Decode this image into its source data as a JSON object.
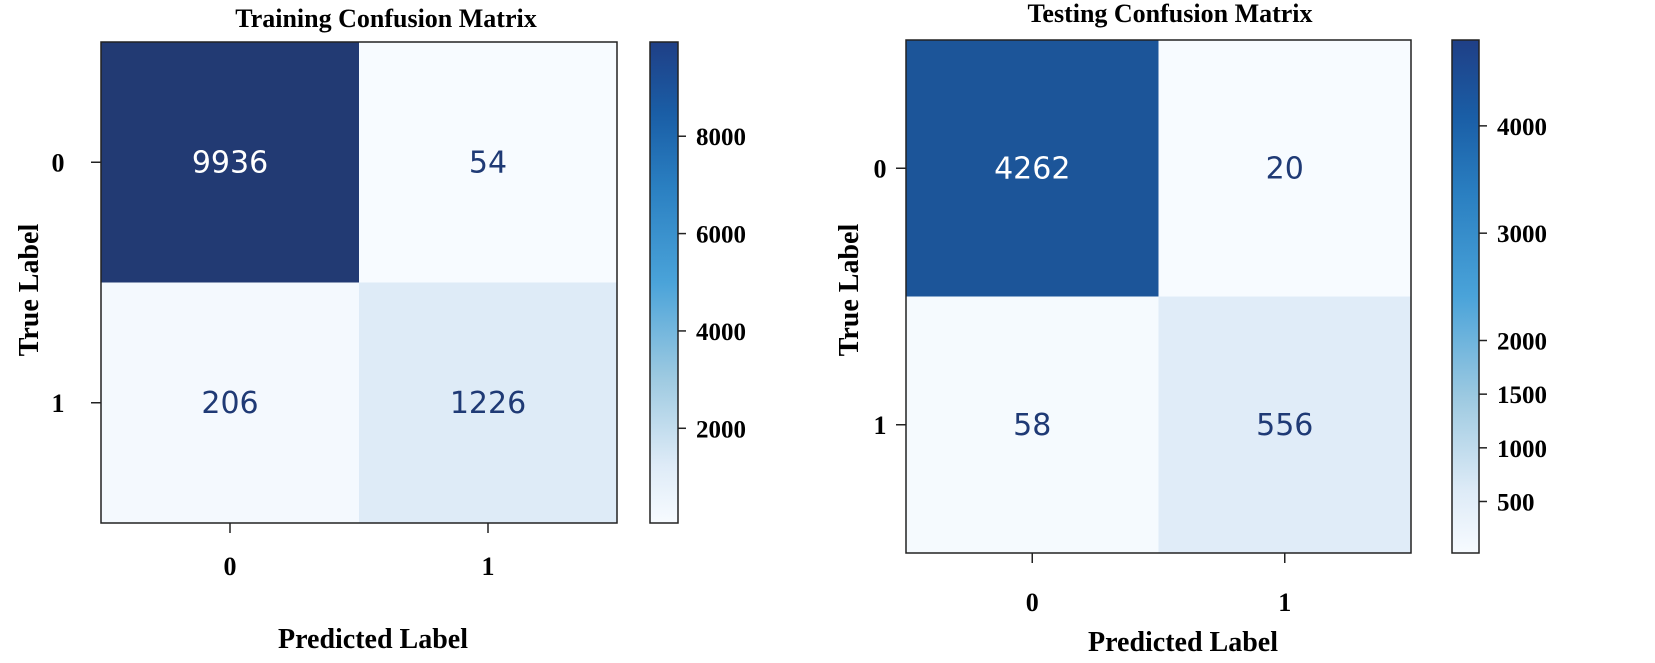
{
  "chart_data": [
    {
      "type": "heatmap",
      "title": "Training Confusion Matrix",
      "xlabel": "Predicted Label",
      "ylabel": "True Label",
      "x_categories": [
        "0",
        "1"
      ],
      "y_categories": [
        "0",
        "1"
      ],
      "values": [
        [
          9936,
          54
        ],
        [
          206,
          1226
        ]
      ],
      "colormap": "Blues",
      "colorbar": {
        "range": [
          54,
          9936
        ],
        "ticks": [
          2000,
          4000,
          6000,
          8000
        ]
      }
    },
    {
      "type": "heatmap",
      "title": "Testing Confusion Matrix",
      "xlabel": "Predicted Label",
      "ylabel": "True Label",
      "x_categories": [
        "0",
        "1"
      ],
      "y_categories": [
        "0",
        "1"
      ],
      "values": [
        [
          4262,
          20
        ],
        [
          58,
          556
        ]
      ],
      "colormap": "Blues",
      "colorbar": {
        "range": [
          20,
          4800
        ],
        "ticks": [
          500,
          1000,
          1500,
          2000,
          3000,
          4000
        ]
      }
    }
  ],
  "colors": {
    "dark": "#223a73",
    "light": "#f7fbff",
    "text_dark": "#1f3a75",
    "text_light": "#ffffff"
  }
}
